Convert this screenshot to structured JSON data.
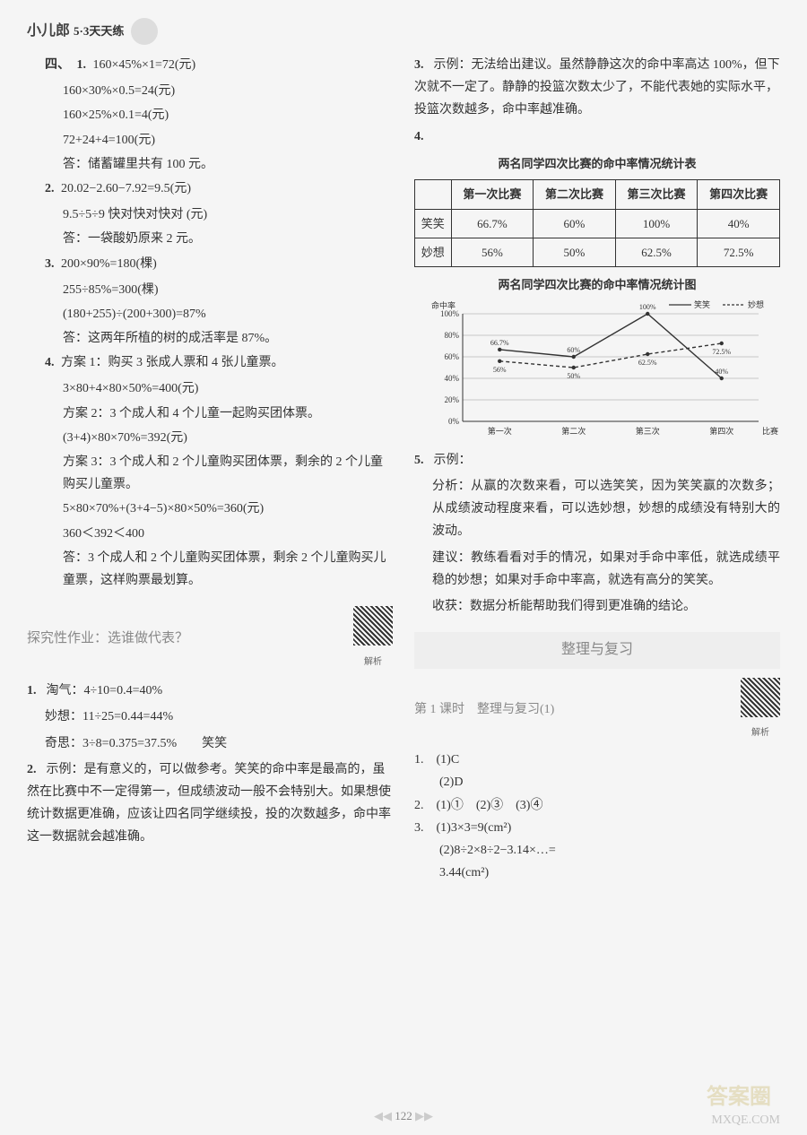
{
  "header": {
    "brand": "小儿郎",
    "sub": "5·3天天练"
  },
  "left": {
    "sec4_label": "四、",
    "q1_num": "1.",
    "q1_l1": "160×45%×1=72(元)",
    "q1_l2": "160×30%×0.5=24(元)",
    "q1_l3": "160×25%×0.1=4(元)",
    "q1_l4": "72+24+4=100(元)",
    "q1_ans": "答：储蓄罐里共有 100 元。",
    "q2_num": "2.",
    "q2_l1": "20.02−2.60−7.92=9.5(元)",
    "q2_l2": "9.5÷5÷9 快对快对快对 (元)",
    "q2_ans": "答：一袋酸奶原来 2 元。",
    "q3_num": "3.",
    "q3_l1": "200×90%=180(棵)",
    "q3_l2": "255÷85%=300(棵)",
    "q3_l3": "(180+255)÷(200+300)=87%",
    "q3_ans": "答：这两年所植的树的成活率是 87%。",
    "q4_num": "4.",
    "q4_l1": "方案 1：购买 3 张成人票和 4 张儿童票。",
    "q4_l2": "3×80+4×80×50%=400(元)",
    "q4_l3": "方案 2：3 个成人和 4 个儿童一起购买团体票。",
    "q4_l4": "(3+4)×80×70%=392(元)",
    "q4_l5": "方案 3：3 个成人和 2 个儿童购买团体票，剩余的 2 个儿童购买儿童票。",
    "q4_l6": "5×80×70%+(3+4−5)×80×50%=360(元)",
    "q4_l7": "360＜392＜400",
    "q4_ans": "答：3 个成人和 2 个儿童购买团体票，剩余 2 个儿童购买儿童票，这样购票最划算。",
    "explore_title": "探究性作业：选谁做代表？",
    "e1_num": "1.",
    "e1_l1": "淘气：4÷10=0.4=40%",
    "e1_l2": "妙想：11÷25=0.44=44%",
    "e1_l3": "奇思：3÷8=0.375=37.5%　　笑笑",
    "e2_num": "2.",
    "e2": "示例：是有意义的，可以做参考。笑笑的命中率是最高的，虽然在比赛中不一定得第一，但成绩波动一般不会特别大。如果想使统计数据更准确，应该让四名同学继续投，投的次数越多，命中率这一数据就会越准确。"
  },
  "right": {
    "r3_num": "3.",
    "r3": "示例：无法给出建议。虽然静静这次的命中率高达 100%，但下次就不一定了。静静的投篮次数太少了，不能代表她的实际水平，投篮次数越多，命中率越准确。",
    "r4_num": "4.",
    "table_title": "两名同学四次比赛的命中率情况统计表",
    "table": {
      "headers": [
        "",
        "第一次比赛",
        "第二次比赛",
        "第三次比赛",
        "第四次比赛"
      ],
      "rows": [
        [
          "笑笑",
          "66.7%",
          "60%",
          "100%",
          "40%"
        ],
        [
          "妙想",
          "56%",
          "50%",
          "62.5%",
          "72.5%"
        ]
      ]
    },
    "chart_title": "两名同学四次比赛的命中率情况统计图",
    "chart": {
      "type": "line",
      "ylabel": "命中率",
      "ylim": [
        0,
        100
      ],
      "ytick_step": 20,
      "categories": [
        "第一次",
        "第二次",
        "第三次",
        "第四次"
      ],
      "xlabel_suffix": "比赛",
      "series": [
        {
          "name": "笑笑",
          "style": "solid",
          "values": [
            66.7,
            60,
            100,
            40
          ],
          "color": "#333333"
        },
        {
          "name": "妙想",
          "style": "dashed",
          "values": [
            56,
            50,
            62.5,
            72.5
          ],
          "color": "#333333"
        }
      ],
      "labels": [
        "66.7%",
        "60%",
        "100%",
        "40%",
        "56%",
        "50%",
        "62.5%",
        "72.5%"
      ],
      "background_color": "#ffffff",
      "grid_color": "#999999",
      "label_fontsize": 9
    },
    "r5_num": "5.",
    "r5_l1": "示例：",
    "r5_p1": "分析：从赢的次数来看，可以选笑笑，因为笑笑赢的次数多；从成绩波动程度来看，可以选妙想，妙想的成绩没有特别大的波动。",
    "r5_p2": "建议：教练看看对手的情况，如果对手命中率低，就选成绩平稳的妙想；如果对手命中率高，就选有高分的笑笑。",
    "r5_p3": "收获：数据分析能帮助我们得到更准确的结论。",
    "unit_title": "整理与复习",
    "lesson": "第 1 课时　整理与复习(1)",
    "b1": "1.　(1)C",
    "b1_2": "　　(2)D",
    "b2": "2.　(1)①　(2)③　(3)④",
    "b3": "3.　(1)3×3=9(cm²)",
    "b3_2": "　　(2)8÷2×8÷2−3.14×…=",
    "b3_3": "　　3.44(cm²)"
  },
  "page": "122",
  "watermark": "答案圈",
  "watermark2": "MXQE.COM",
  "qr_label": "解析"
}
